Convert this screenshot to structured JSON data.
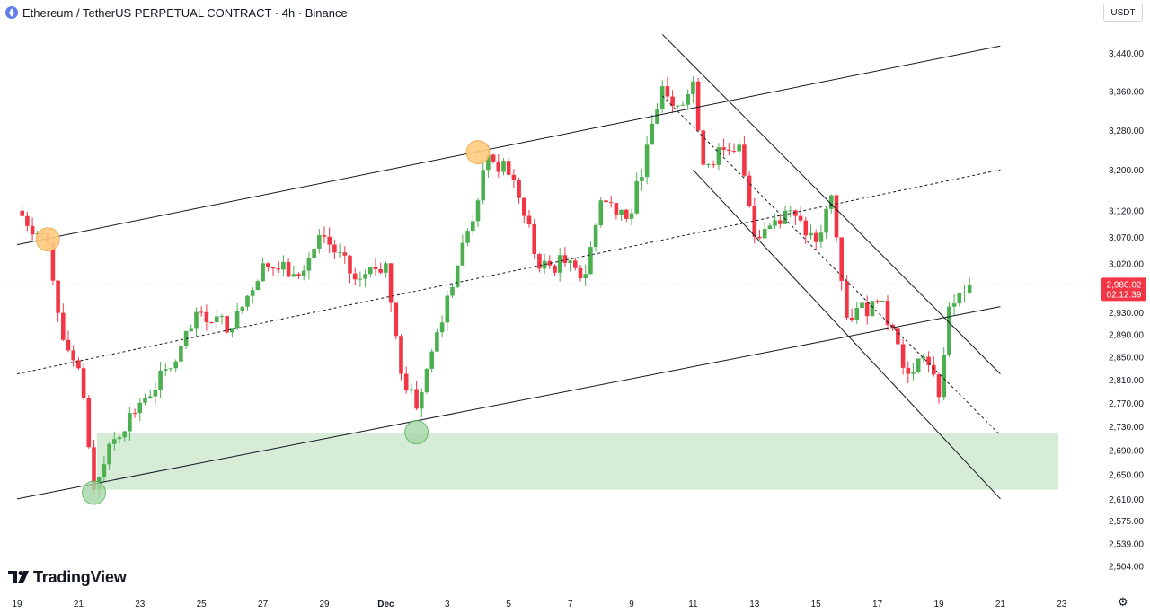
{
  "header": {
    "title": "Ethereum / TetherUS PERPETUAL CONTRACT · 4h · Binance",
    "symbol_icon": "ethereum-icon"
  },
  "toolbar": {
    "currency_label": "USDT"
  },
  "branding": {
    "name": "TradingView",
    "icon": "tradingview-logo"
  },
  "settings_icon": "gear-icon",
  "colors": {
    "up": "#26a69a",
    "candle_up": "#4caf50",
    "candle_down": "#f23645",
    "last_price_bg": "#f23645",
    "zone": "#c8e6c9",
    "pivot_high": "#ffcc80",
    "pivot_low": "#a5d6a7"
  },
  "chart_data": {
    "type": "candlestick",
    "title": "Ethereum / TetherUS PERPETUAL CONTRACT · 4h · Binance",
    "y_scale": "log",
    "ylim": [
      2470,
      3500
    ],
    "y_ticks": [
      {
        "value": 3440,
        "label": "3,440.00"
      },
      {
        "value": 3360,
        "label": "3,360.00"
      },
      {
        "value": 3280,
        "label": "3,280.00"
      },
      {
        "value": 3200,
        "label": "3,200.00"
      },
      {
        "value": 3120,
        "label": "3,120.00"
      },
      {
        "value": 3070,
        "label": "3,070.00"
      },
      {
        "value": 3020,
        "label": "3,020.00"
      },
      {
        "value": 2930,
        "label": "2,930.00"
      },
      {
        "value": 2890,
        "label": "2,890.00"
      },
      {
        "value": 2850,
        "label": "2,850.00"
      },
      {
        "value": 2810,
        "label": "2,810.00"
      },
      {
        "value": 2770,
        "label": "2,770.00"
      },
      {
        "value": 2730,
        "label": "2,730.00"
      },
      {
        "value": 2690,
        "label": "2,690.00"
      },
      {
        "value": 2650,
        "label": "2,650.00"
      },
      {
        "value": 2610,
        "label": "2,610.00"
      },
      {
        "value": 2575,
        "label": "2,575.00"
      },
      {
        "value": 2539,
        "label": "2,539.00"
      },
      {
        "value": 2504,
        "label": "2,504.00"
      }
    ],
    "x_ticks": [
      {
        "label": "19",
        "x": "Nov 19"
      },
      {
        "label": "21",
        "x": "Nov 21"
      },
      {
        "label": "23",
        "x": "Nov 23"
      },
      {
        "label": "25",
        "x": "Nov 25"
      },
      {
        "label": "27",
        "x": "Nov 27"
      },
      {
        "label": "29",
        "x": "Nov 29"
      },
      {
        "label": "Dec",
        "x": "Dec 1",
        "bold": true
      },
      {
        "label": "3",
        "x": "Dec 3"
      },
      {
        "label": "5",
        "x": "Dec 5"
      },
      {
        "label": "7",
        "x": "Dec 7"
      },
      {
        "label": "9",
        "x": "Dec 9"
      },
      {
        "label": "11",
        "x": "Dec 11"
      },
      {
        "label": "13",
        "x": "Dec 13"
      },
      {
        "label": "15",
        "x": "Dec 15"
      },
      {
        "label": "17",
        "x": "Dec 17"
      },
      {
        "label": "19",
        "x": "Dec 19"
      },
      {
        "label": "21",
        "x": "Dec 21"
      },
      {
        "label": "23",
        "x": "Dec 23"
      }
    ],
    "last_price": {
      "value": 2980.02,
      "price_label": "2,980.02",
      "countdown": "02:12:39"
    },
    "key_points": [
      {
        "x": "Nov 19",
        "y": 3120
      },
      {
        "x": "Nov 20",
        "y": 3060
      },
      {
        "x": "Nov 20 12:00",
        "y": 2880
      },
      {
        "x": "Nov 21",
        "y": 2830
      },
      {
        "x": "Nov 21 12:00",
        "y": 2625
      },
      {
        "x": "Nov 22",
        "y": 2700
      },
      {
        "x": "Nov 23",
        "y": 2770
      },
      {
        "x": "Nov 24",
        "y": 2830
      },
      {
        "x": "Nov 25",
        "y": 2930
      },
      {
        "x": "Nov 26",
        "y": 2900
      },
      {
        "x": "Nov 27",
        "y": 3020
      },
      {
        "x": "Nov 28",
        "y": 3000
      },
      {
        "x": "Nov 29",
        "y": 3070
      },
      {
        "x": "Nov 30",
        "y": 2990
      },
      {
        "x": "Dec 1",
        "y": 3020
      },
      {
        "x": "Dec 1 12:00",
        "y": 2820
      },
      {
        "x": "Dec 2",
        "y": 2760
      },
      {
        "x": "Dec 3",
        "y": 2960
      },
      {
        "x": "Dec 4",
        "y": 3140
      },
      {
        "x": "Dec 4 08:00",
        "y": 3230
      },
      {
        "x": "Dec 5",
        "y": 3190
      },
      {
        "x": "Dec 5 12:00",
        "y": 3110
      },
      {
        "x": "Dec 6",
        "y": 3010
      },
      {
        "x": "Dec 7",
        "y": 3025
      },
      {
        "x": "Dec 7 12:00",
        "y": 3000
      },
      {
        "x": "Dec 8",
        "y": 3140
      },
      {
        "x": "Dec 9",
        "y": 3115
      },
      {
        "x": "Dec 9 12:00",
        "y": 3250
      },
      {
        "x": "Dec 10",
        "y": 3370
      },
      {
        "x": "Dec 10 12:00",
        "y": 3330
      },
      {
        "x": "Dec 11",
        "y": 3380
      },
      {
        "x": "Dec 11 08:00",
        "y": 3210
      },
      {
        "x": "Dec 12",
        "y": 3240
      },
      {
        "x": "Dec 12 12:00",
        "y": 3250
      },
      {
        "x": "Dec 13",
        "y": 3070
      },
      {
        "x": "Dec 14",
        "y": 3120
      },
      {
        "x": "Dec 15",
        "y": 3060
      },
      {
        "x": "Dec 15 12:00",
        "y": 3150
      },
      {
        "x": "Dec 16",
        "y": 2920
      },
      {
        "x": "Dec 17",
        "y": 2950
      },
      {
        "x": "Dec 17 12:00",
        "y": 2900
      },
      {
        "x": "Dec 18",
        "y": 2820
      },
      {
        "x": "Dec 18 12:00",
        "y": 2850
      },
      {
        "x": "Dec 19",
        "y": 2780
      },
      {
        "x": "Dec 19 08:00",
        "y": 2940
      },
      {
        "x": "Dec 19 16:00",
        "y": 2965
      },
      {
        "x": "Dec 20",
        "y": 2980.02
      }
    ],
    "drawings": {
      "ascending_channel": {
        "upper": [
          {
            "x": "Nov 19",
            "y": 3055
          },
          {
            "x": "Dec 21",
            "y": 3455
          }
        ],
        "middle": [
          {
            "x": "Nov 19",
            "y": 2820
          },
          {
            "x": "Dec 21",
            "y": 3200
          }
        ],
        "lower": [
          {
            "x": "Nov 19",
            "y": 2610
          },
          {
            "x": "Dec 21",
            "y": 2940
          }
        ]
      },
      "descending_channel": {
        "upper": [
          {
            "x": "Dec 10",
            "y": 3480
          },
          {
            "x": "Dec 21",
            "y": 2820
          }
        ],
        "middle": [
          {
            "x": "Dec 10",
            "y": 3350
          },
          {
            "x": "Dec 21",
            "y": 2715
          }
        ],
        "lower": [
          {
            "x": "Dec 11",
            "y": 3200
          },
          {
            "x": "Dec 21",
            "y": 2610
          }
        ]
      },
      "support_zone": {
        "from": 2625,
        "to": 2718
      },
      "pivot_highs": [
        {
          "x": "Nov 20",
          "y": 3065
        },
        {
          "x": "Dec 4",
          "y": 3235
        }
      ],
      "pivot_lows": [
        {
          "x": "Nov 21 12:00",
          "y": 2620
        },
        {
          "x": "Dec 2",
          "y": 2720
        }
      ]
    }
  }
}
